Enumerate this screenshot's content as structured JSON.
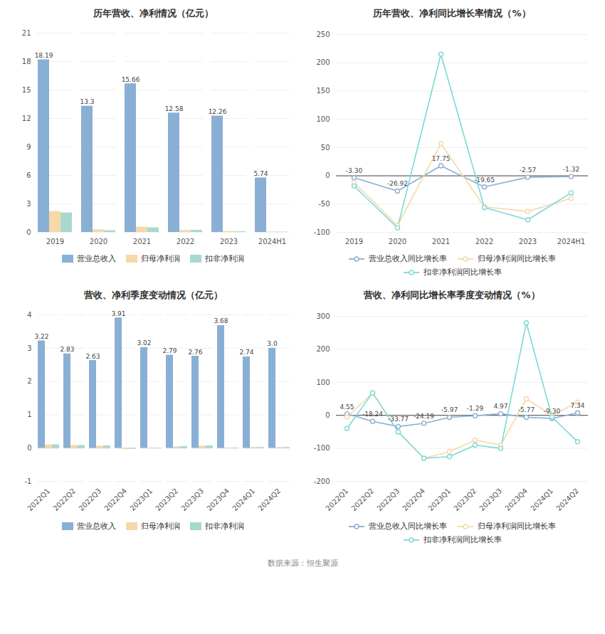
{
  "caption": "数据来源：恒生聚源",
  "chart_data": [
    {
      "type": "bar",
      "title": "历年营收、净利情况（亿元）",
      "categories": [
        "2019",
        "2020",
        "2021",
        "2022",
        "2023",
        "2024H1"
      ],
      "series": [
        {
          "name": "营业总收入",
          "color": "#8aafd4",
          "values": [
            18.19,
            13.3,
            15.66,
            12.58,
            12.26,
            5.74
          ],
          "data_labels": true
        },
        {
          "name": "归母净利润",
          "color": "#f5d9a8",
          "values": [
            2.2,
            0.28,
            0.55,
            0.2,
            0.1,
            0.05
          ]
        },
        {
          "name": "扣非净利润",
          "color": "#a8d8d0",
          "values": [
            2.05,
            0.18,
            0.48,
            0.22,
            0.07,
            0.03
          ]
        }
      ],
      "ylim": [
        0,
        21
      ],
      "yticks": [
        0,
        3,
        6,
        9,
        12,
        15,
        18,
        21
      ],
      "grid": true,
      "legend": "bottom"
    },
    {
      "type": "line",
      "title": "历年营收、净利同比增长率情况（%）",
      "categories": [
        "2019",
        "2020",
        "2021",
        "2022",
        "2023",
        "2024H1"
      ],
      "series": [
        {
          "name": "营业总收入同比增长率",
          "color": "#8aafd4",
          "values": [
            -3.3,
            -26.92,
            17.75,
            -19.65,
            -2.57,
            -1.32
          ],
          "value_labels": [
            "-3.30",
            "-26.92",
            "17.75",
            "-19.65",
            "-2.57",
            "-1.32"
          ],
          "data_labels": true,
          "marker": "circle",
          "line_style": "solid"
        },
        {
          "name": "归母净利润同比增长率",
          "color": "#f5d9a8",
          "values": [
            -12.0,
            -88.0,
            57.0,
            -55.0,
            -63.0,
            -40.0
          ],
          "marker": "circle",
          "line_style": "solid"
        },
        {
          "name": "扣非净利润同比增长率",
          "color": "#7dd9d9",
          "values": [
            -18.0,
            -92.0,
            215.0,
            -56.0,
            -78.0,
            -30.0
          ],
          "marker": "circle",
          "line_style": "solid"
        }
      ],
      "ylim": [
        -100,
        250
      ],
      "yticks": [
        -100,
        -50,
        0,
        50,
        100,
        150,
        200,
        250
      ],
      "grid": true,
      "legend": "bottom"
    },
    {
      "type": "bar",
      "title": "营收、净利季度变动情况（亿元）",
      "categories": [
        "2022Q1",
        "2022Q2",
        "2022Q3",
        "2022Q4",
        "2023Q1",
        "2023Q2",
        "2023Q3",
        "2023Q4",
        "2024Q1",
        "2024Q2"
      ],
      "series": [
        {
          "name": "营业总收入",
          "color": "#8aafd4",
          "values": [
            3.22,
            2.83,
            2.63,
            3.91,
            3.02,
            2.79,
            2.76,
            3.68,
            2.74,
            3.0
          ],
          "value_labels": [
            "3.22",
            "2.83",
            "2.63",
            "3.91",
            "3.02",
            "2.79",
            "2.76",
            "3.68",
            "2.74",
            "3.0"
          ],
          "data_labels": true
        },
        {
          "name": "归母净利润",
          "color": "#f5d9a8",
          "values": [
            0.1,
            0.08,
            0.06,
            -0.04,
            -0.01,
            0.04,
            0.06,
            -0.01,
            0.02,
            0.02
          ]
        },
        {
          "name": "扣非净利润",
          "color": "#a8d8d0",
          "values": [
            0.1,
            0.08,
            0.07,
            -0.03,
            -0.01,
            0.05,
            0.07,
            -0.01,
            0.02,
            0.02
          ]
        }
      ],
      "ylim": [
        -1,
        4
      ],
      "yticks": [
        -1,
        0,
        1,
        2,
        3,
        4
      ],
      "grid": true,
      "legend": "bottom"
    },
    {
      "type": "line",
      "title": "营收、净利同比增长率季度变动情况（%）",
      "categories": [
        "2022Q1",
        "2022Q2",
        "2022Q3",
        "2022Q4",
        "2023Q1",
        "2023Q2",
        "2023Q3",
        "2023Q4",
        "2024Q1",
        "2024Q2"
      ],
      "series": [
        {
          "name": "营业总收入同比增长率",
          "color": "#8aafd4",
          "values": [
            4.55,
            -18.24,
            -33.77,
            -24.19,
            -5.97,
            -1.29,
            4.97,
            -5.77,
            -9.3,
            7.34
          ],
          "value_labels": [
            "4.55",
            "-18.24",
            "-33.77",
            "-24.19",
            "-5.97",
            "-1.29",
            "4.97",
            "-5.77",
            "-9.30",
            "7.34"
          ],
          "data_labels": true,
          "marker": "circle",
          "line_style": "solid"
        },
        {
          "name": "归母净利润同比增长率",
          "color": "#f5d9a8",
          "values": [
            -5.0,
            68.0,
            -50.0,
            -130.0,
            -110.0,
            -75.0,
            -90.0,
            50.0,
            0.0,
            40.0
          ],
          "marker": "circle",
          "line_style": "solid"
        },
        {
          "name": "扣非净利润同比增长率",
          "color": "#7dd9d9",
          "values": [
            -40.0,
            68.0,
            -50.0,
            -130.0,
            -125.0,
            -90.0,
            -100.0,
            280.0,
            -5.0,
            -80.0
          ],
          "marker": "circle",
          "line_style": "solid"
        }
      ],
      "ylim": [
        -200,
        300
      ],
      "yticks": [
        -200,
        -100,
        0,
        100,
        200,
        300
      ],
      "grid": true,
      "legend": "bottom"
    }
  ]
}
